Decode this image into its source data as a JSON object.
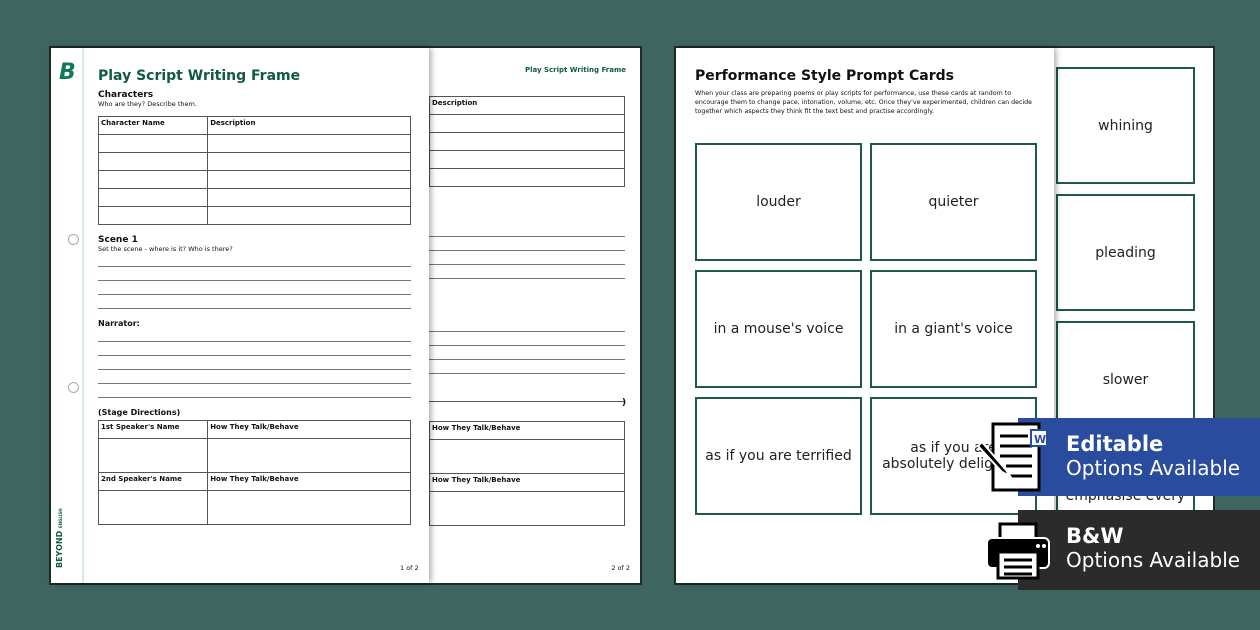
{
  "left_doc": {
    "title": "Play Script Writing Frame",
    "brand": "BEYOND",
    "brand_sub": "ENGLISH",
    "characters_heading": "Characters",
    "characters_prompt": "Who are they? Describe them.",
    "char_table_headers": [
      "Character Name",
      "Description"
    ],
    "scene_heading": "Scene 1",
    "scene_prompt": "Set the scene - where is it? Who is there?",
    "narrator_label": "Narrator:",
    "stage_directions": "(Stage Directions)",
    "speaker1_headers": [
      "1st Speaker's Name",
      "How They Talk/Behave"
    ],
    "speaker2_headers": [
      "2nd Speaker's Name",
      "How They Talk/Behave"
    ],
    "page1_number": "1 of 2",
    "page2_title": "Play Script Writing Frame",
    "page2_col": "Description",
    "page2_behave1": "How They Talk/Behave",
    "page2_behave2": "How They Talk/Behave",
    "page2_paren": ")",
    "page2_number": "2 of 2"
  },
  "right_doc": {
    "title": "Performance Style Prompt Cards",
    "intro": "When your class are preparing poems or play scripts for performance, use these cards at random to encourage them to change pace, intonation, volume, etc. Once they've experimented, children can decide together which aspects they think fit the text best and practise accordingly.",
    "cards": [
      "louder",
      "quieter",
      "in a mouse's voice",
      "in a giant's voice",
      "as if you are terrified",
      "as if you are absolutely delighted"
    ],
    "back_cards": [
      "whining",
      "pleading",
      "slower",
      "emphasise every"
    ]
  },
  "badges": {
    "editable": {
      "title": "Editable",
      "subtitle": "Options Available",
      "color": "#2a4c9e",
      "icon": "word-document-edit-icon"
    },
    "bw": {
      "title": "B&W",
      "subtitle": "Options Available",
      "color": "#2b2b2b",
      "icon": "printer-icon"
    }
  },
  "colors": {
    "background": "#3e655f",
    "brand_green": "#0f5a46"
  }
}
